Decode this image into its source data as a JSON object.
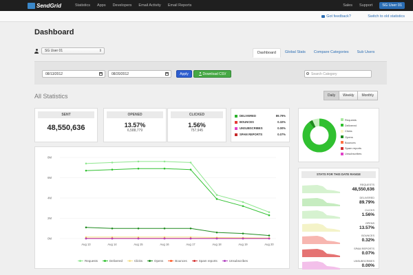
{
  "nav": {
    "logo": "SendGrid",
    "left_items": [
      "Statistics",
      "Apps",
      "Developers",
      "Email Activity",
      "Email Reports"
    ],
    "right_items": [
      "Sales",
      "Support"
    ],
    "user": "SG User 01"
  },
  "subbar": {
    "feedback": "Got feedback?",
    "switch": "Switch to old statistics"
  },
  "page_title": "Dashboard",
  "user_select": "SG User 01",
  "tabs": [
    "Dashboard",
    "Global Stats",
    "Compare Categories",
    "Sub Users"
  ],
  "filters": {
    "start_date": "08/13/2012",
    "end_date": "08/20/2012",
    "apply": "Apply",
    "download": "Download CSV",
    "search_placeholder": "Search Category"
  },
  "section_title": "All Statistics",
  "range_buttons": [
    "Daily",
    "Weekly",
    "Monthly"
  ],
  "cards": {
    "sent": {
      "label": "SENT",
      "value": "48,550,636"
    },
    "opened": {
      "label": "OPENED",
      "pct": "13.57%",
      "value": "6,588,779"
    },
    "clicked": {
      "label": "CLICKED",
      "pct": "1.56%",
      "value": "757,945"
    }
  },
  "rates": [
    {
      "label": "DELIVERED",
      "pct": "89.79%",
      "color": "#2bb12b"
    },
    {
      "label": "BOUNCES",
      "pct": "0.32%",
      "color": "#e53935"
    },
    {
      "label": "UNSUBSCRIBES",
      "pct": "0.00%",
      "color": "#e040c8"
    },
    {
      "label": "SPAM REPORTS",
      "pct": "0.07%",
      "color": "#c62828"
    }
  ],
  "chart_data": {
    "type": "line",
    "x": [
      "Aug 13",
      "Aug 14",
      "Aug 15",
      "Aug 16",
      "Aug 17",
      "Aug 18",
      "Aug 19",
      "Aug 20"
    ],
    "y_ticks": [
      "0M",
      "2M",
      "4M",
      "6M",
      "8M"
    ],
    "ylim": [
      0,
      8
    ],
    "series": [
      {
        "name": "Requests",
        "color": "#8ee68e",
        "values": [
          7.4,
          7.5,
          7.6,
          7.6,
          7.5,
          4.3,
          3.6,
          2.6
        ]
      },
      {
        "name": "Delivered",
        "color": "#30c030",
        "values": [
          6.7,
          6.8,
          6.9,
          6.9,
          6.8,
          3.9,
          3.2,
          2.3
        ]
      },
      {
        "name": "Clicks",
        "color": "#f5e08a",
        "values": [
          0.15,
          0.15,
          0.15,
          0.15,
          0.15,
          0.1,
          0.08,
          0.05
        ]
      },
      {
        "name": "Opens",
        "color": "#1e8a1e",
        "values": [
          1.1,
          1.0,
          1.0,
          1.0,
          1.0,
          0.6,
          0.5,
          0.3
        ]
      },
      {
        "name": "Bounces",
        "color": "#ff5722",
        "values": [
          0.02,
          0.02,
          0.02,
          0.02,
          0.02,
          0.02,
          0.02,
          0.02
        ]
      },
      {
        "name": "Spam reports",
        "color": "#d32f2f",
        "values": [
          0.01,
          0.01,
          0.01,
          0.01,
          0.01,
          0.01,
          0.01,
          0.01
        ]
      },
      {
        "name": "Unsubscribes",
        "color": "#b040c0",
        "values": [
          0.0,
          0.0,
          0.0,
          0.0,
          0.0,
          0.0,
          0.0,
          0.0
        ]
      }
    ]
  },
  "donut": {
    "legend": [
      {
        "label": "Requests",
        "color": "#a8e8a0"
      },
      {
        "label": "Delivered",
        "color": "#30c030"
      },
      {
        "label": "Clicks",
        "color": "#fbf3c8"
      },
      {
        "label": "Opens",
        "color": "#1e8a1e"
      },
      {
        "label": "Bounces",
        "color": "#ff7043"
      },
      {
        "label": "Spam reports",
        "color": "#d32f2f"
      },
      {
        "label": "Unsubscribes",
        "color": "#e040c8"
      }
    ]
  },
  "range_stats": {
    "title": "STATS FOR THIS DATE RANGE",
    "rows": [
      {
        "label": "REQUESTS",
        "value": "48,550,636",
        "color": "#d6f2d0"
      },
      {
        "label": "DELIVERED",
        "value": "89.79%",
        "color": "#c6ecc0"
      },
      {
        "label": "CLICKS",
        "value": "1.56%",
        "color": "#d6f2d0"
      },
      {
        "label": "OPENS",
        "value": "13.57%",
        "color": "#f4f3c8"
      },
      {
        "label": "BOUNCES",
        "value": "0.32%",
        "color": "#f7b6b0"
      },
      {
        "label": "SPAM REPORTS",
        "value": "0.07%",
        "color": "#e57373"
      },
      {
        "label": "UNSUBSCRIBES",
        "value": "0.00%",
        "color": "#f3c0ea"
      }
    ]
  }
}
